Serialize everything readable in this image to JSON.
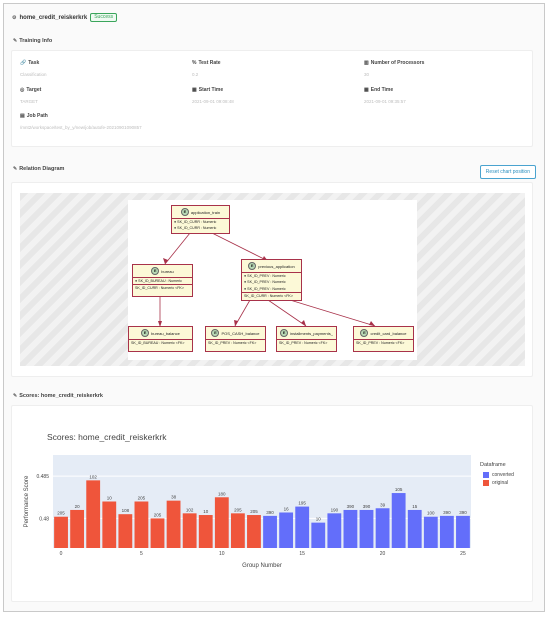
{
  "page": {
    "title": "home_credit_reiskerkrk",
    "status": "Success"
  },
  "training_info": {
    "heading": "Training Info",
    "items": [
      {
        "label": "Task",
        "value": "Classification",
        "icon": "link-icon"
      },
      {
        "label": "Test Rate",
        "value": "0.2",
        "icon": "percent-icon"
      },
      {
        "label": "Number of Processors",
        "value": "30",
        "icon": "processor-icon"
      },
      {
        "label": "Target",
        "value": "TARGET",
        "icon": "target-icon"
      },
      {
        "label": "Start Time",
        "value": "2021-09-01 09:08:48",
        "icon": "calendar-icon"
      },
      {
        "label": "End Time",
        "value": "2021-09-01 09:35:57",
        "icon": "calendar-icon"
      },
      {
        "label": "Job Path",
        "value": "/mnt2/workspace/test_by_y/new/job/autofe-20210901090857",
        "icon": "map-icon"
      }
    ]
  },
  "relation": {
    "heading": "Relation Diagram",
    "reset_label": "Reset chart position",
    "entities": {
      "application_train": {
        "name": "application_train",
        "fields": [
          "SK_ID_CURR : Numeric",
          "SK_ID_CURR : Numeric"
        ]
      },
      "bureau": {
        "name": "bureau",
        "pk": "SK_ID_BUREAU : Numeric",
        "fk": "SK_ID_CURR : Numeric <FK>"
      },
      "previous_application": {
        "name": "previous_application",
        "fields": [
          "SK_ID_PREV : Numeric",
          "SK_ID_PREV : Numeric",
          "SK_ID_PREV : Numeric"
        ],
        "fk": "SK_ID_CURR : Numeric <FK>"
      },
      "bureau_balance": {
        "name": "bureau_balance",
        "fk": "SK_ID_BUREAU : Numeric <FK>"
      },
      "pos_cash_balance": {
        "name": "POS_CASH_balance",
        "fk": "SK_ID_PREV : Numeric <FK>"
      },
      "installments_payments": {
        "name": "installments_payments_",
        "fk": "SK_ID_PREV : Numeric <FK>"
      },
      "credit_card_balance": {
        "name": "credit_card_balance",
        "fk": "SK_ID_PREV : Numeric <FK>"
      }
    }
  },
  "scores": {
    "heading": "Scores: home_credit_reiskerkrk",
    "colors": {
      "converted": "#636efa",
      "original": "#ef553b",
      "plot_bg": "#e5ecf6"
    }
  },
  "chart_data": {
    "type": "bar",
    "title": "Scores:  home_credit_reiskerkrk",
    "xlabel": "Group Number",
    "ylabel": "Performance Score",
    "x_ticks": [
      0,
      5,
      10,
      15,
      20,
      25
    ],
    "y_ticks": [
      0.48,
      0.485
    ],
    "ylim": [
      0.4765,
      0.4875
    ],
    "legend_title": "Dataframe",
    "legend": [
      "converted",
      "original"
    ],
    "bars": [
      {
        "group": 0,
        "value": 0.4802,
        "label": "205",
        "series": "original"
      },
      {
        "group": 1,
        "value": 0.481,
        "label": "20",
        "series": "original"
      },
      {
        "group": 2,
        "value": 0.4845,
        "label": "102",
        "series": "original"
      },
      {
        "group": 3,
        "value": 0.482,
        "label": "10",
        "series": "original"
      },
      {
        "group": 4,
        "value": 0.4805,
        "label": "108",
        "series": "original"
      },
      {
        "group": 5,
        "value": 0.482,
        "label": "205",
        "series": "original"
      },
      {
        "group": 6,
        "value": 0.48,
        "label": "205",
        "series": "original"
      },
      {
        "group": 7,
        "value": 0.4821,
        "label": "38",
        "series": "original"
      },
      {
        "group": 8,
        "value": 0.4806,
        "label": "102",
        "series": "original"
      },
      {
        "group": 9,
        "value": 0.4804,
        "label": "10",
        "series": "original"
      },
      {
        "group": 10,
        "value": 0.4825,
        "label": "180",
        "series": "original"
      },
      {
        "group": 11,
        "value": 0.4806,
        "label": "205",
        "series": "original"
      },
      {
        "group": 12,
        "value": 0.4804,
        "label": "205",
        "series": "original"
      },
      {
        "group": 13,
        "value": 0.4803,
        "label": "390",
        "series": "converted"
      },
      {
        "group": 14,
        "value": 0.4807,
        "label": "16",
        "series": "converted"
      },
      {
        "group": 15,
        "value": 0.4814,
        "label": "195",
        "series": "converted"
      },
      {
        "group": 16,
        "value": 0.4795,
        "label": "10",
        "series": "converted"
      },
      {
        "group": 17,
        "value": 0.4806,
        "label": "190",
        "series": "converted"
      },
      {
        "group": 18,
        "value": 0.481,
        "label": "390",
        "series": "converted"
      },
      {
        "group": 19,
        "value": 0.481,
        "label": "390",
        "series": "converted"
      },
      {
        "group": 20,
        "value": 0.4812,
        "label": "39",
        "series": "converted"
      },
      {
        "group": 21,
        "value": 0.483,
        "label": "105",
        "series": "converted"
      },
      {
        "group": 22,
        "value": 0.481,
        "label": "15",
        "series": "converted"
      },
      {
        "group": 23,
        "value": 0.4802,
        "label": "100",
        "series": "converted"
      },
      {
        "group": 24,
        "value": 0.4803,
        "label": "390",
        "series": "converted"
      },
      {
        "group": 25,
        "value": 0.4803,
        "label": "390",
        "series": "converted"
      }
    ]
  }
}
